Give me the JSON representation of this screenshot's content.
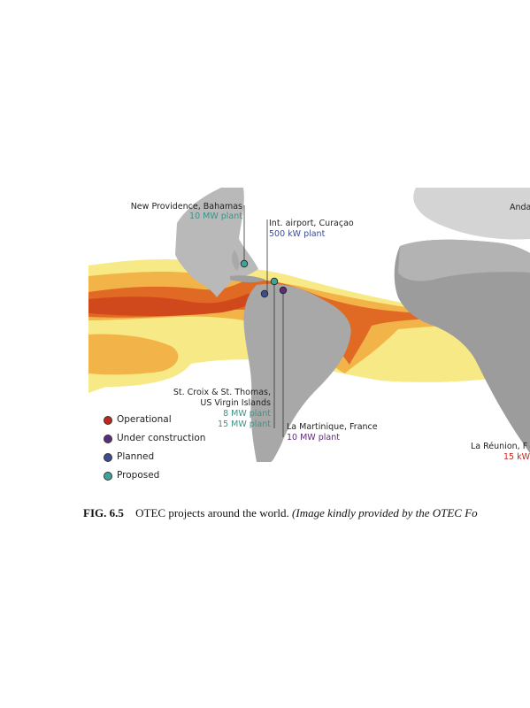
{
  "projects": [
    {
      "name": "New Providence, Bahamas",
      "capacity": "10 MW plant",
      "status": "Proposed"
    },
    {
      "name": "Int. airport, Curaçao",
      "capacity": "500 kW plant",
      "status": "Planned"
    },
    {
      "name": "St. Croix & St. Thomas,",
      "name_line2": "US Virgin Islands",
      "capacity": "8 MW plant",
      "capacity_line2": "15 MW plant",
      "status": "Proposed"
    },
    {
      "name": "La Martinique, France",
      "capacity": "10 MW plant",
      "status": "Under construction"
    },
    {
      "name": "La Réunion, F",
      "capacity": "15 kW",
      "status": "Operational"
    },
    {
      "name": "Anda",
      "capacity": "",
      "status": ""
    }
  ],
  "legend": [
    {
      "label": "Operational",
      "color": "#c0281e"
    },
    {
      "label": "Under construction",
      "color": "#5a2d7a"
    },
    {
      "label": "Planned",
      "color": "#3d4d8f"
    },
    {
      "label": "Proposed",
      "color": "#3fa39a"
    }
  ],
  "colors": {
    "proposed_text": "#3a9488",
    "planned_text": "#3d4d8f",
    "construction_text": "#5a2d7a",
    "operational_text": "#c0281e",
    "heat_light": "#f7ea86",
    "heat_mid": "#f2b348",
    "heat_strong": "#e06a24",
    "heat_core": "#d0491c"
  },
  "caption": {
    "figure": "FIG. 6.5",
    "text": "OTEC projects around the world.",
    "credit": "(Image kindly provided by the OTEC Fo"
  }
}
